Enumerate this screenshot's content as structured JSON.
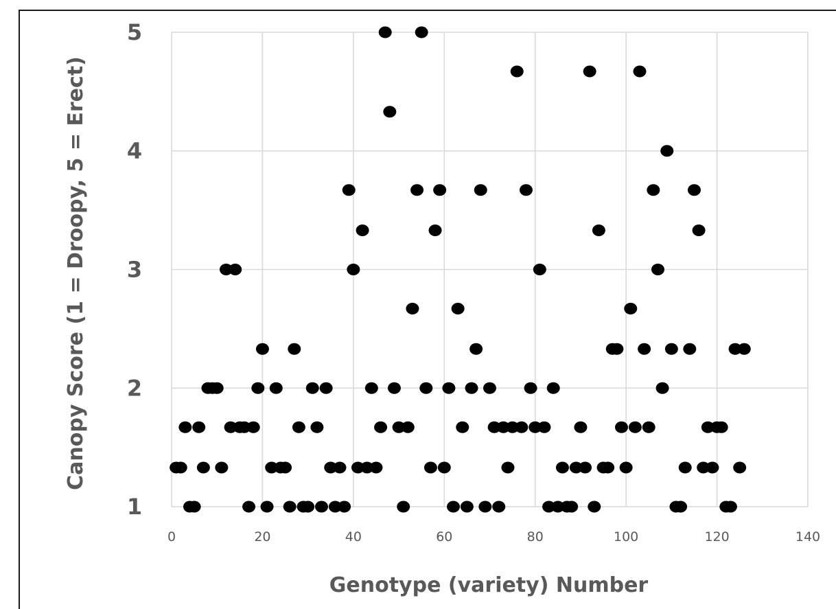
{
  "chart_data": {
    "type": "scatter",
    "title": "",
    "xlabel": "Genotype (variety) Number",
    "ylabel": "Canopy Score (1 = Droopy, 5 = Erect)",
    "xlim": [
      0,
      140
    ],
    "ylim": [
      1,
      5
    ],
    "x_ticks": [
      0,
      20,
      40,
      60,
      80,
      100,
      120,
      140
    ],
    "y_ticks": [
      1,
      2,
      3,
      4,
      5
    ],
    "grid": true,
    "legend": "none",
    "marker_color": "#000000",
    "series": [
      {
        "points": [
          [
            1,
            1.33
          ],
          [
            2,
            1.33
          ],
          [
            3,
            1.67
          ],
          [
            4,
            1
          ],
          [
            5,
            1
          ],
          [
            6,
            1.67
          ],
          [
            7,
            1.33
          ],
          [
            8,
            2
          ],
          [
            9,
            2
          ],
          [
            10,
            2
          ],
          [
            11,
            1.33
          ],
          [
            12,
            3
          ],
          [
            14,
            3
          ],
          [
            13,
            1.67
          ],
          [
            15,
            1.67
          ],
          [
            16,
            1.67
          ],
          [
            17,
            1
          ],
          [
            18,
            1.67
          ],
          [
            19,
            2
          ],
          [
            20,
            2.33
          ],
          [
            21,
            1
          ],
          [
            22,
            1.33
          ],
          [
            23,
            2
          ],
          [
            24,
            1.33
          ],
          [
            25,
            1.33
          ],
          [
            26,
            1
          ],
          [
            27,
            2.33
          ],
          [
            28,
            1.67
          ],
          [
            29,
            1
          ],
          [
            30,
            1
          ],
          [
            31,
            2
          ],
          [
            32,
            1.67
          ],
          [
            33,
            1
          ],
          [
            34,
            2
          ],
          [
            35,
            1.33
          ],
          [
            36,
            1
          ],
          [
            37,
            1.33
          ],
          [
            38,
            1
          ],
          [
            39,
            3.67
          ],
          [
            40,
            3
          ],
          [
            41,
            1.33
          ],
          [
            42,
            3.33
          ],
          [
            43,
            1.33
          ],
          [
            44,
            2
          ],
          [
            45,
            1.33
          ],
          [
            46,
            1.67
          ],
          [
            47,
            5
          ],
          [
            48,
            4.33
          ],
          [
            49,
            2
          ],
          [
            50,
            1.67
          ],
          [
            51,
            1
          ],
          [
            52,
            1.67
          ],
          [
            53,
            2.67
          ],
          [
            54,
            3.67
          ],
          [
            55,
            5
          ],
          [
            56,
            2
          ],
          [
            57,
            1.33
          ],
          [
            58,
            3.33
          ],
          [
            59,
            3.67
          ],
          [
            60,
            1.33
          ],
          [
            61,
            2
          ],
          [
            62,
            1
          ],
          [
            63,
            2.67
          ],
          [
            64,
            1.67
          ],
          [
            65,
            1
          ],
          [
            66,
            2
          ],
          [
            67,
            2.33
          ],
          [
            68,
            3.67
          ],
          [
            69,
            1
          ],
          [
            70,
            2
          ],
          [
            71,
            1.67
          ],
          [
            72,
            1
          ],
          [
            73,
            1.67
          ],
          [
            74,
            1.33
          ],
          [
            75,
            1.67
          ],
          [
            76,
            4.67
          ],
          [
            77,
            1.67
          ],
          [
            78,
            3.67
          ],
          [
            79,
            2
          ],
          [
            80,
            1.67
          ],
          [
            81,
            3
          ],
          [
            82,
            1.67
          ],
          [
            83,
            1
          ],
          [
            84,
            2
          ],
          [
            85,
            1
          ],
          [
            86,
            1.33
          ],
          [
            87,
            1
          ],
          [
            88,
            1
          ],
          [
            89,
            1.33
          ],
          [
            90,
            1.67
          ],
          [
            91,
            1.33
          ],
          [
            92,
            4.67
          ],
          [
            93,
            1
          ],
          [
            94,
            3.33
          ],
          [
            95,
            1.33
          ],
          [
            96,
            1.33
          ],
          [
            97,
            2.33
          ],
          [
            98,
            2.33
          ],
          [
            99,
            1.67
          ],
          [
            100,
            1.33
          ],
          [
            101,
            2.67
          ],
          [
            102,
            1.67
          ],
          [
            103,
            4.67
          ],
          [
            104,
            2.33
          ],
          [
            105,
            1.67
          ],
          [
            106,
            3.67
          ],
          [
            107,
            3
          ],
          [
            108,
            2
          ],
          [
            109,
            4
          ],
          [
            110,
            2.33
          ],
          [
            111,
            1
          ],
          [
            112,
            1
          ],
          [
            113,
            1.33
          ],
          [
            114,
            2.33
          ],
          [
            115,
            3.67
          ],
          [
            116,
            3.33
          ],
          [
            117,
            1.33
          ],
          [
            118,
            1.67
          ],
          [
            119,
            1.33
          ],
          [
            120,
            1.67
          ],
          [
            121,
            1.67
          ],
          [
            122,
            1
          ],
          [
            123,
            1
          ],
          [
            124,
            2.33
          ],
          [
            125,
            1.33
          ],
          [
            126,
            2.33
          ]
        ]
      }
    ]
  }
}
